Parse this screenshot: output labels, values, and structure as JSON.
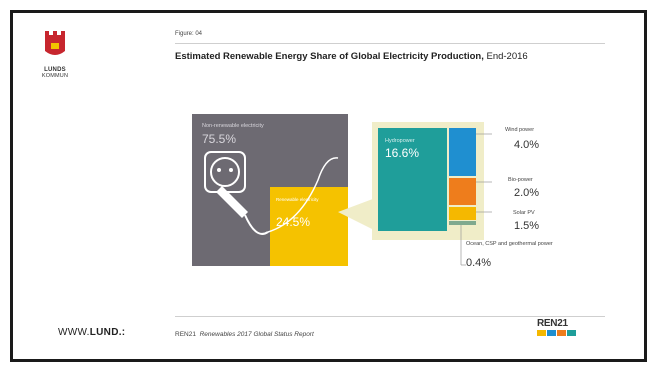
{
  "logo": {
    "line1": "LUNDS",
    "line2": "KOMMUN"
  },
  "figure_label": "Figure: 04",
  "title_main": "Estimated Renewable Energy Share of Global Electricity Production,",
  "title_suffix": " End-2016",
  "footer": {
    "org": "REN21",
    "publication": "Renewables 2017 Global Status Report",
    "www_prefix": "WWW.",
    "www_bold": "LUND.:"
  },
  "ren21_logo": "REN21",
  "colors": {
    "nonrenewable": "#6d6a72",
    "renewable": "#f5c200",
    "hydro": "#1f9e9a",
    "wind": "#1f8fd0",
    "bio": "#ee7d1c",
    "solar": "#f5b800",
    "ocean": "#7fa98e",
    "zoom": "#f0edc8"
  },
  "chart_data": {
    "type": "treemap",
    "level1": [
      {
        "name": "Non-renewable electricity",
        "value": 75.5,
        "label": "75.5%"
      },
      {
        "name": "Renewable electricity",
        "value": 24.5,
        "label": "24.5%"
      }
    ],
    "renewable_breakdown": [
      {
        "name": "Hydropower",
        "value": 16.6,
        "label": "16.6%"
      },
      {
        "name": "Wind power",
        "value": 4.0,
        "label": "4.0%"
      },
      {
        "name": "Bio-power",
        "value": 2.0,
        "label": "2.0%"
      },
      {
        "name": "Solar PV",
        "value": 1.5,
        "label": "1.5%"
      },
      {
        "name": "Ocean, CSP and geothermal power",
        "value": 0.4,
        "label": "0.4%"
      }
    ]
  }
}
